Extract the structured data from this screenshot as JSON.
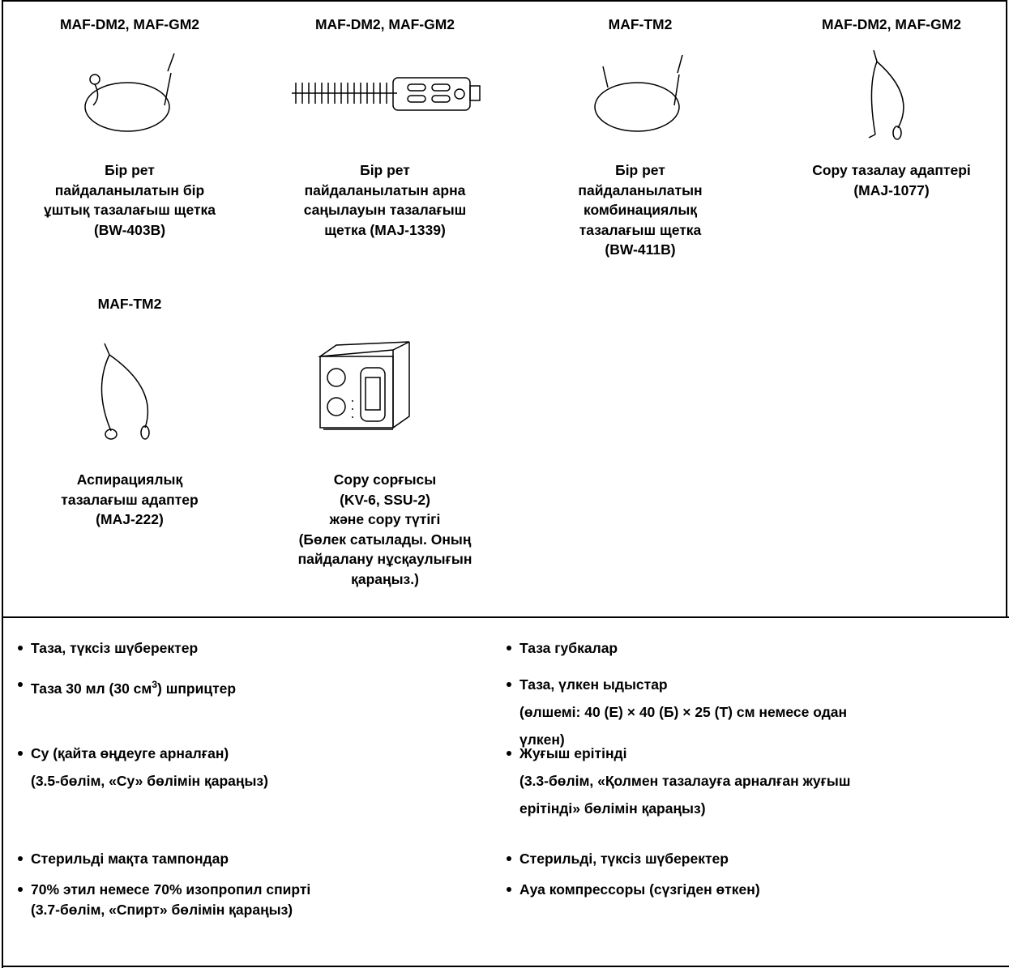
{
  "equipment": [
    {
      "model": "MAF-DM2, MAF-GM2",
      "caption": [
        "Бір рет",
        "пайдаланылатын бір",
        "ұштық тазалағыш щетка",
        "(BW-403B)"
      ]
    },
    {
      "model": "MAF-DM2, MAF-GM2",
      "caption": [
        "Бір рет",
        "пайдаланылатын арна",
        "саңылауын тазалағыш",
        "щетка (MAJ-1339)"
      ]
    },
    {
      "model": "MAF-TM2",
      "caption": [
        "Бір рет",
        "пайдаланылатын",
        "комбинациялық",
        "тазалағыш щетка",
        "(BW-411B)"
      ]
    },
    {
      "model": "MAF-DM2, MAF-GM2",
      "caption": [
        "Сору тазалау адаптері",
        "(MAJ-1077)"
      ]
    },
    {
      "model": "MAF-TM2",
      "caption": [
        "Аспирациялық",
        "тазалағыш адаптер",
        "(MAJ-222)"
      ]
    },
    {
      "model": null,
      "caption": [
        "Сору сорғысы",
        "(KV-6, SSU-2)",
        "және сору түтігі",
        "(Бөлек сатылады. Оның",
        "пайдалану нұсқаулығын",
        "қараңыз.)"
      ]
    }
  ],
  "supplies": [
    {
      "left": [
        "Таза, түксіз шүберектер"
      ],
      "right": [
        "Таза губкалар"
      ]
    },
    {
      "left": [
        {
          "text": "Таза 30 мл (30 см",
          "sup": "3",
          "tail": ") шприцтер"
        }
      ],
      "right": [
        "Таза, үлкен ыдыстар",
        "(өлшемі: 40 (Е) × 40 (Б) × 25 (Т) см немесе одан",
        "үлкен)"
      ]
    },
    {
      "left": [
        "Су (қайта өңдеуге арналған)",
        "(3.5-бөлім, «Су» бөлімін қараңыз)"
      ],
      "right": [
        "Жуғыш ерітінді",
        "(3.3-бөлім, «Қолмен тазалауға арналған жуғыш",
        "ерітінді» бөлімін қараңыз)"
      ]
    },
    {
      "left": [
        "Стерильді мақта тампондар"
      ],
      "right": [
        "Стерильді, түксіз шүберектер"
      ]
    },
    {
      "left": [
        "70% этил немесе 70% изопропил спирті",
        "(3.7-бөлім, «Спирт» бөлімін қараңыз)"
      ],
      "right": [
        "Ауа компрессоры (сүзгіден өткен)"
      ]
    }
  ]
}
